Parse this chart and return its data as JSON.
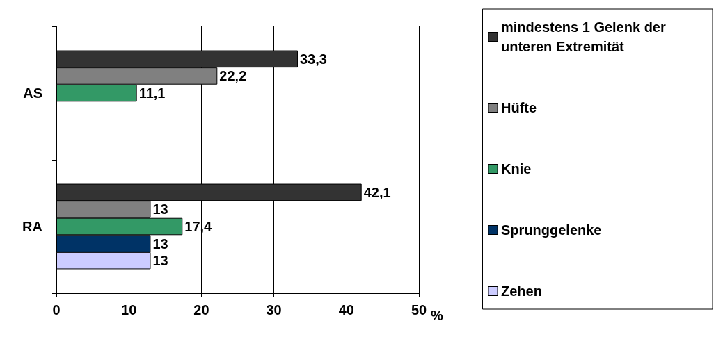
{
  "chart_data": {
    "type": "bar",
    "orientation": "horizontal",
    "categories": [
      "AS",
      "RA"
    ],
    "series": [
      {
        "name": "mindestens 1 Gelenk der unteren Extremität",
        "color": "#333333",
        "values": [
          33.3,
          42.1
        ],
        "value_labels": [
          "33,3",
          "42,1"
        ]
      },
      {
        "name": "Hüfte",
        "color": "#808080",
        "values": [
          22.2,
          13
        ],
        "value_labels": [
          "22,2",
          "13"
        ]
      },
      {
        "name": "Knie",
        "color": "#339966",
        "values": [
          11.1,
          17.4
        ],
        "value_labels": [
          "11,1",
          "17,4"
        ]
      },
      {
        "name": "Sprunggelenke",
        "color": "#003366",
        "values": [
          null,
          13
        ],
        "value_labels": [
          null,
          "13"
        ]
      },
      {
        "name": "Zehen",
        "color": "#ccccff",
        "values": [
          null,
          13
        ],
        "value_labels": [
          null,
          "13"
        ]
      }
    ],
    "xlabel": "%",
    "xlim": [
      0,
      50
    ],
    "xticks": [
      0,
      10,
      20,
      30,
      40,
      50
    ],
    "grid": "x",
    "legend": "right"
  }
}
